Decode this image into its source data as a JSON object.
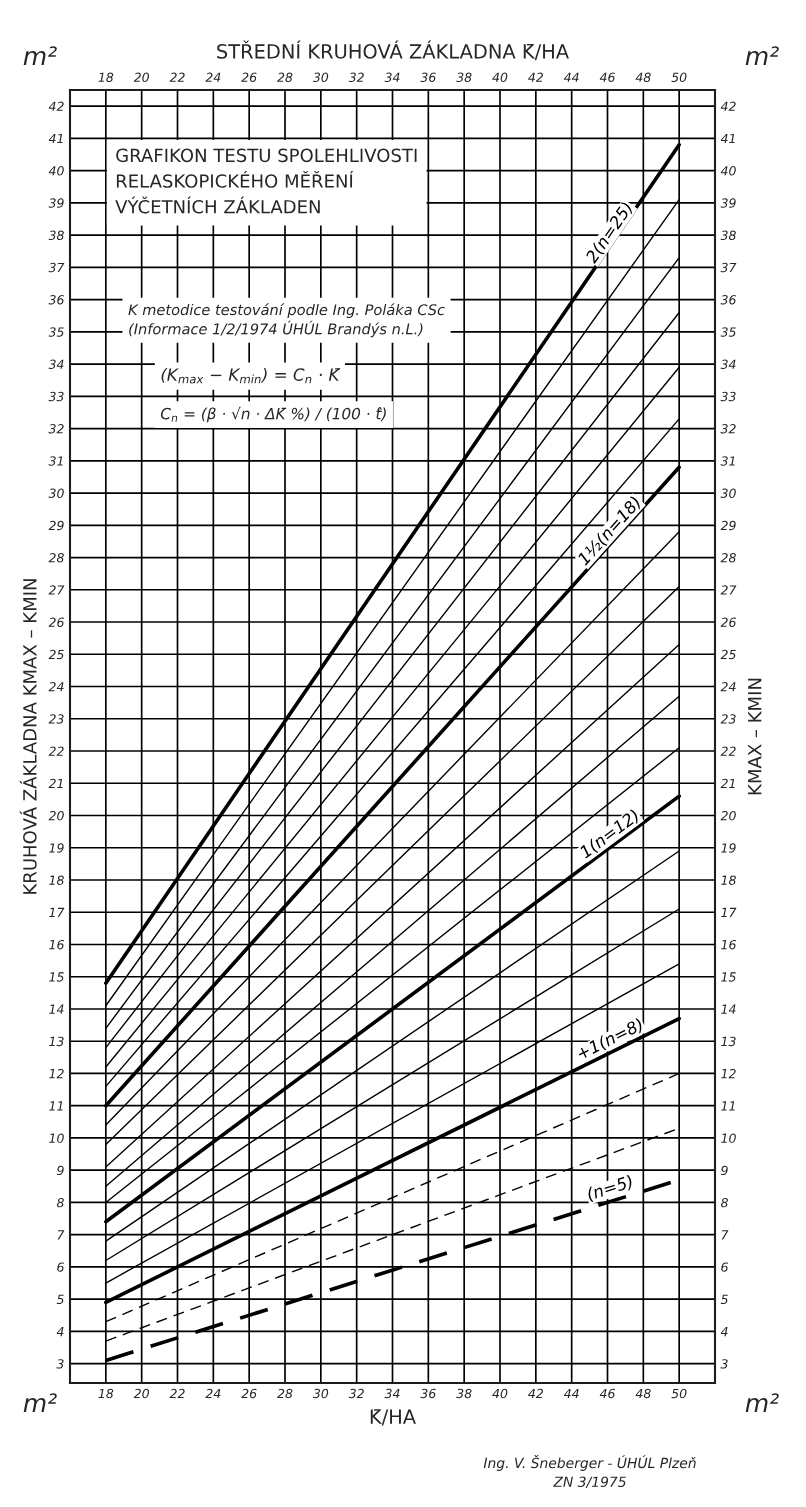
{
  "chart_data": {
    "type": "line",
    "title": "GRAFIKON TESTU SPOLEHLIVOSTI\nRELASKOPICKÉHO MĚŘENÍ\nVÝČETNÍCH ZÁKLADEN",
    "subtitle": "K metodice testování podle Ing. Poláka CSc\n(Informace 1/2/1974 ÚHÚL Brandýs n.L.)",
    "xlabel": "K̄/HA",
    "x2label": "STŘEDNÍ KRUHOVÁ ZÁKLADNA K̄/HA",
    "ylabel": "KRUHOVÁ ZÁKLADNA KMAX – KMIN",
    "y2label": "KMAX – KMIN",
    "annotations": [
      "(K$_{max}$ − K$_{min}$) = C$_{n}$ · K̄",
      "C$_{n}$ = (β · √n · ΔK̄ %) / (100 · t̂)",
      "m²",
      "m²",
      "m²",
      "m²",
      "Ing. V. Šneberger - ÚHÚL Plzeň",
      "ZN 3/1975"
    ],
    "x": [
      18,
      50
    ],
    "series": [
      {
        "name": "2(n=25)",
        "color": "#000000",
        "values": [
          14.8,
          40.8
        ]
      },
      {
        "color": "#000000",
        "values": [
          14.1,
          39.1
        ]
      },
      {
        "color": "#000000",
        "values": [
          13.4,
          37.3
        ]
      },
      {
        "color": "#000000",
        "values": [
          12.8,
          35.6
        ]
      },
      {
        "color": "#000000",
        "values": [
          12.2,
          33.9
        ]
      },
      {
        "color": "#000000",
        "values": [
          11.6,
          32.3
        ]
      },
      {
        "name": "1½(n=18)",
        "color": "#000000",
        "values": [
          11.0,
          30.8
        ]
      },
      {
        "color": "#000000",
        "values": [
          10.4,
          28.8
        ]
      },
      {
        "color": "#000000",
        "values": [
          9.8,
          27.1
        ]
      },
      {
        "color": "#000000",
        "values": [
          9.1,
          25.3
        ]
      },
      {
        "color": "#000000",
        "values": [
          8.5,
          23.7
        ]
      },
      {
        "color": "#000000",
        "values": [
          8.0,
          22.1
        ]
      },
      {
        "name": "1(n=12)",
        "color": "#000000",
        "values": [
          7.4,
          20.6
        ]
      },
      {
        "color": "#000000",
        "values": [
          6.8,
          18.9
        ]
      },
      {
        "color": "#000000",
        "values": [
          6.2,
          17.1
        ]
      },
      {
        "color": "#000000",
        "values": [
          5.5,
          15.4
        ]
      },
      {
        "name": "+1(n=8)",
        "color": "#000000",
        "values": [
          4.9,
          13.7
        ]
      },
      {
        "color": "#000000",
        "values": [
          4.3,
          12.0
        ],
        "line_style": "dashed"
      },
      {
        "color": "#000000",
        "values": [
          3.7,
          10.3
        ],
        "line_style": "dashed"
      },
      {
        "name": "(n=5)",
        "color": "#000000",
        "values": [
          3.1,
          8.7
        ],
        "line_style": "dashed"
      }
    ],
    "xlim": [
      16,
      52
    ],
    "x2lim": [
      16,
      52
    ],
    "xticks": [
      18,
      20,
      22,
      24,
      26,
      28,
      30,
      32,
      34,
      36,
      38,
      40,
      42,
      44,
      46,
      48,
      50
    ],
    "x2ticks": [
      18,
      20,
      22,
      24,
      26,
      28,
      30,
      32,
      34,
      36,
      38,
      40,
      42,
      44,
      46,
      48,
      50
    ],
    "ylim": [
      2.4,
      42.5
    ],
    "y2lim": [
      2.4,
      42.5
    ],
    "yticks": [
      3,
      4,
      5,
      6,
      7,
      8,
      9,
      10,
      11,
      12,
      13,
      14,
      15,
      16,
      17,
      18,
      19,
      20,
      21,
      22,
      23,
      24,
      25,
      26,
      27,
      28,
      29,
      30,
      31,
      32,
      33,
      34,
      35,
      36,
      37,
      38,
      39,
      40,
      41,
      42
    ],
    "y2ticks": [
      3,
      4,
      5,
      6,
      7,
      8,
      9,
      10,
      11,
      12,
      13,
      14,
      15,
      16,
      17,
      18,
      19,
      20,
      21,
      22,
      23,
      24,
      25,
      26,
      27,
      28,
      29,
      30,
      31,
      32,
      33,
      34,
      35,
      36,
      37,
      38,
      39,
      40,
      41,
      42
    ],
    "grid": true,
    "marker": "none",
    "line_style": "solid"
  }
}
